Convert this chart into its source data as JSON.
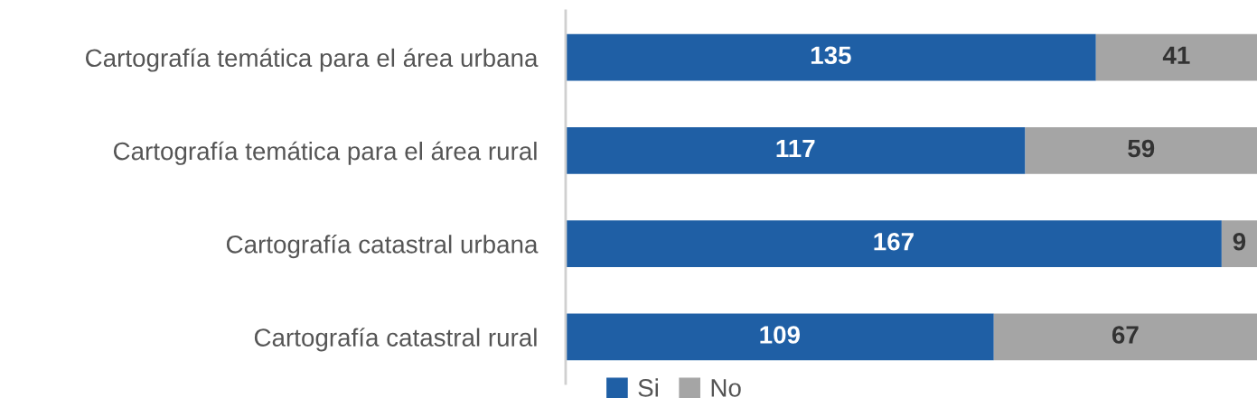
{
  "chart_data": {
    "type": "bar",
    "orientation": "horizontal",
    "stacked": true,
    "data_labels": true,
    "legend": "bottom left",
    "grid": false,
    "categories": [
      "Cartografía temática para el área urbana",
      "Cartografía temática para el área rural",
      "Cartografía catastral urbana",
      "Cartografía catastral rural"
    ],
    "series": [
      {
        "name": "Si",
        "color": "#1f5fa5",
        "values": [
          135,
          117,
          167,
          109
        ]
      },
      {
        "name": "No",
        "color": "#a5a5a5",
        "values": [
          41,
          59,
          9,
          67
        ]
      }
    ]
  }
}
